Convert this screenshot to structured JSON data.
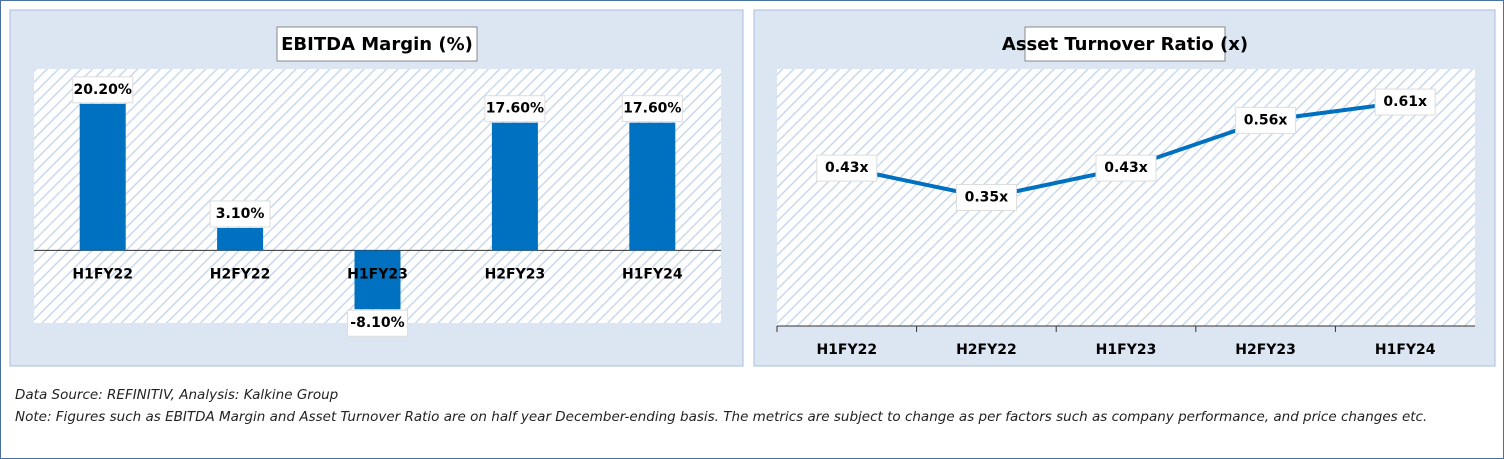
{
  "chart_data": [
    {
      "type": "bar",
      "title": "EBITDA Margin (%)",
      "categories": [
        "H1FY22",
        "H2FY22",
        "H1FY23",
        "H2FY23",
        "H1FY24"
      ],
      "values": [
        20.2,
        3.1,
        -8.1,
        17.6,
        17.6
      ],
      "value_labels": [
        "20.20%",
        "3.10%",
        "-8.10%",
        "17.60%",
        "17.60%"
      ],
      "color": "#0070c0",
      "ylim": [
        -10,
        25
      ]
    },
    {
      "type": "line",
      "title": "Asset Turnover Ratio (x)",
      "categories": [
        "H1FY22",
        "H2FY22",
        "H1FY23",
        "H2FY23",
        "H1FY24"
      ],
      "values": [
        0.43,
        0.35,
        0.43,
        0.56,
        0.61
      ],
      "value_labels": [
        "0.43x",
        "0.35x",
        "0.43x",
        "0.56x",
        "0.61x"
      ],
      "color": "#0070c0",
      "ylim": [
        0,
        0.7
      ]
    }
  ],
  "footer": {
    "source": "Data Source: REFINITIV, Analysis: Kalkine Group",
    "note": "Note: Figures such as EBITDA Margin and Asset Turnover Ratio are on half year December-ending basis. The metrics are subject to change as per factors such as company performance, and price changes etc."
  }
}
